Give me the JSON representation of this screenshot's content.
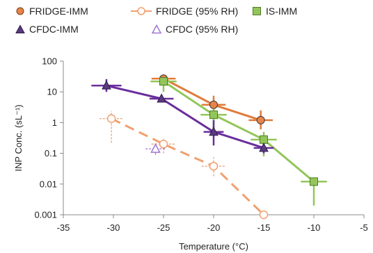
{
  "chart_data": {
    "type": "scatter",
    "xlabel": "Temperature (°C)",
    "ylabel": "INP Conc. (sL⁻¹)",
    "xlim": [
      -35,
      -5
    ],
    "ylim": [
      0.001,
      100
    ],
    "yscale": "log",
    "x_ticks": [
      "-35",
      "-30",
      "-25",
      "-20",
      "-15",
      "-10",
      "-5"
    ],
    "y_ticks": [
      "100",
      "10",
      "1",
      "0.1",
      "0.01",
      "0.001"
    ],
    "legend_position": "top",
    "series": [
      {
        "name": "FRIDGE-IMM",
        "marker": "circle",
        "filled": true,
        "line": "solid",
        "color": "#E07B39",
        "fill": "#E8844A",
        "x": [
          -25,
          -20,
          -15.3
        ],
        "y": [
          27,
          3.8,
          1.2
        ],
        "xerr": [
          1.2,
          1.2,
          1.2
        ],
        "yerr_low": [
          18,
          2.4,
          0.6
        ],
        "yerr_high": [
          35,
          7.5,
          2.5
        ]
      },
      {
        "name": "FRIDGE (95% RH)",
        "marker": "circle",
        "filled": false,
        "line": "dashed",
        "color": "#F0A070",
        "fill": "none",
        "x": [
          -30.2,
          -25,
          -20,
          -15
        ],
        "y": [
          1.35,
          0.2,
          0.038,
          0.001
        ],
        "xerr": [
          1.2,
          1.2,
          1.2,
          0
        ],
        "yerr_low": [
          0.22,
          0.1,
          0.018,
          0.001
        ],
        "yerr_high": [
          2.4,
          0.3,
          0.075,
          0.001
        ]
      },
      {
        "name": "IS-IMM",
        "marker": "square",
        "filled": true,
        "line": "solid",
        "color": "#92C65A",
        "fill": "#92C65A",
        "x": [
          -25,
          -20,
          -15,
          -10
        ],
        "y": [
          22,
          1.8,
          0.28,
          0.012
        ],
        "xerr": [
          1.3,
          1.3,
          1.3,
          1.3
        ],
        "yerr_low": [
          10,
          0.6,
          0.08,
          0.002
        ],
        "yerr_high": [
          30,
          4.5,
          0.5,
          0.014
        ]
      },
      {
        "name": "CFDC-IMM",
        "marker": "triangle",
        "filled": true,
        "line": "solid",
        "color": "#6A2E9C",
        "fill": "#5A3A80",
        "x": [
          -30.7,
          -25.2,
          -20,
          -15
        ],
        "y": [
          16,
          6,
          0.5,
          0.15
        ],
        "xerr": [
          1.5,
          1.2,
          1.0,
          1.0
        ],
        "yerr_low": [
          10,
          4.5,
          0.18,
          0.1
        ],
        "yerr_high": [
          26,
          8,
          1.2,
          0.22
        ]
      },
      {
        "name": "CFDC (95% RH)",
        "marker": "triangle",
        "filled": false,
        "line": "none",
        "color": "#A276D0",
        "fill": "none",
        "x": [
          -25.8
        ],
        "y": [
          0.14
        ],
        "xerr": [
          1.0
        ],
        "yerr_low": [
          0.09
        ],
        "yerr_high": [
          0.21
        ]
      }
    ]
  }
}
